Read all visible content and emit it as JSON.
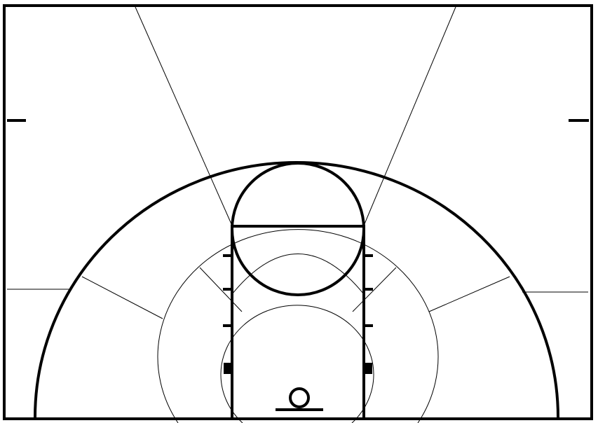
{
  "diagram": {
    "kind": "basketball-half-court-shot-zones",
    "colors": {
      "background": "#ffffff",
      "line": "#000000"
    }
  }
}
